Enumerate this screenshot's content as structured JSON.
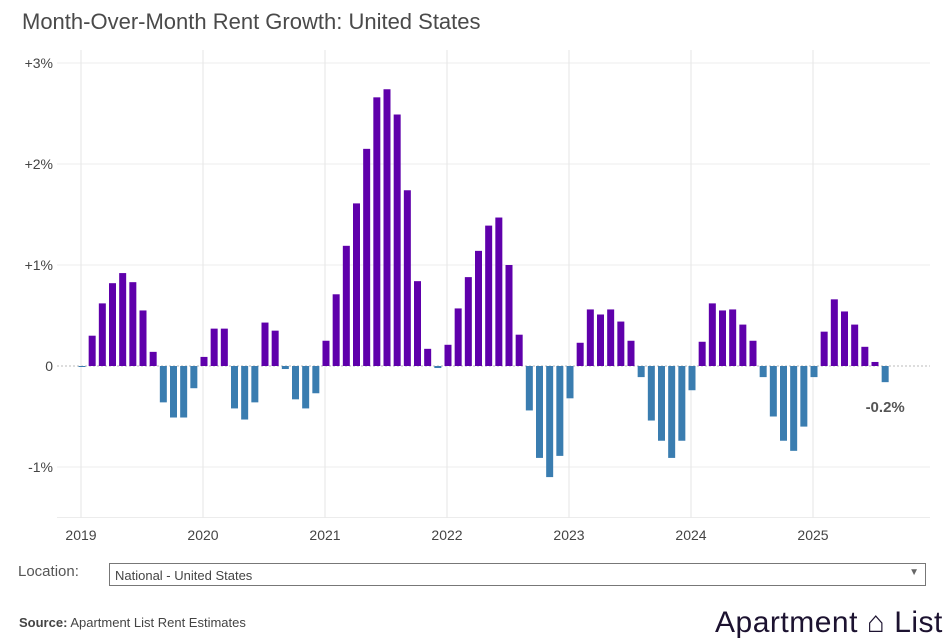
{
  "title": "Month-Over-Month Rent Growth: United States",
  "chart_data": {
    "type": "bar",
    "title": "Month-Over-Month Rent Growth: United States",
    "xlabel": "",
    "ylabel": "",
    "ylim": [
      -1.5,
      3.0
    ],
    "y_ticks": [
      {
        "value": 3,
        "label": "+3%"
      },
      {
        "value": 2,
        "label": "+2%"
      },
      {
        "value": 1,
        "label": "+1%"
      },
      {
        "value": 0,
        "label": "0"
      },
      {
        "value": -1,
        "label": "-1%"
      }
    ],
    "x_ticks": [
      "2019",
      "2020",
      "2021",
      "2022",
      "2023",
      "2024",
      "2025"
    ],
    "grid": true,
    "start_month": "2019-01",
    "end_month": "2025-08",
    "units": "%",
    "colors": {
      "positive": "#5f00ab",
      "negative": "#3a7db0"
    },
    "values": [
      -0.01,
      0.3,
      0.62,
      0.82,
      0.92,
      0.83,
      0.55,
      0.14,
      -0.36,
      -0.51,
      -0.51,
      -0.22,
      0.09,
      0.37,
      0.37,
      -0.42,
      -0.53,
      -0.36,
      0.43,
      0.35,
      -0.03,
      -0.33,
      -0.42,
      -0.27,
      0.25,
      0.71,
      1.19,
      1.61,
      2.15,
      2.66,
      2.74,
      2.49,
      1.74,
      0.84,
      0.17,
      -0.02,
      0.21,
      0.57,
      0.88,
      1.14,
      1.39,
      1.47,
      1.0,
      0.31,
      -0.44,
      -0.91,
      -1.1,
      -0.89,
      -0.32,
      0.23,
      0.56,
      0.51,
      0.56,
      0.44,
      0.25,
      -0.11,
      -0.54,
      -0.74,
      -0.91,
      -0.74,
      -0.24,
      0.24,
      0.62,
      0.55,
      0.56,
      0.41,
      0.25,
      -0.11,
      -0.5,
      -0.74,
      -0.84,
      -0.6,
      -0.11,
      0.34,
      0.66,
      0.54,
      0.41,
      0.19,
      0.04,
      -0.16
    ],
    "annotation": "-0.2%"
  },
  "location": {
    "label": "Location:",
    "selected": "National - United States"
  },
  "source": {
    "label": "Source:",
    "text": "Apartment List Rent Estimates"
  },
  "logo": "Apartment List"
}
